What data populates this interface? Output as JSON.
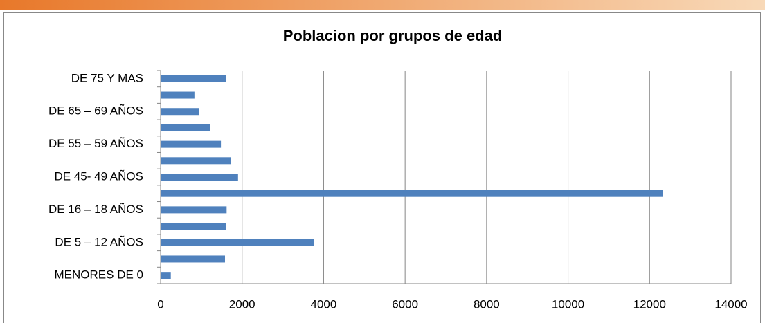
{
  "chart_data": {
    "type": "bar",
    "orientation": "horizontal",
    "title": "Poblacion por grupos de edad",
    "categories": [
      "MENORES DE 0",
      null,
      "DE 5 – 12 AÑOS",
      null,
      "DE 16 – 18 AÑOS",
      null,
      "DE 45- 49 AÑOS",
      null,
      "DE 55 – 59 AÑOS",
      null,
      "DE 65 – 69 AÑOS",
      null,
      "DE 75 Y MAS"
    ],
    "values": [
      250,
      1580,
      3760,
      1600,
      1620,
      12320,
      1900,
      1730,
      1480,
      1220,
      950,
      830,
      1600
    ],
    "color": "#4f81bd",
    "xlim": [
      0,
      14000
    ],
    "xticks": [
      0,
      2000,
      4000,
      6000,
      8000,
      10000,
      12000,
      14000
    ],
    "grid": true
  }
}
